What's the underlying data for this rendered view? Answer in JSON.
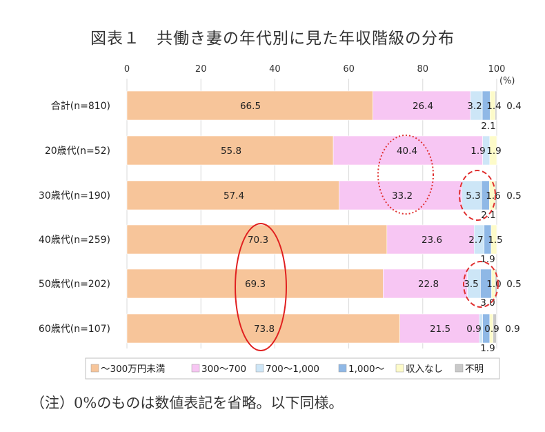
{
  "title": "図表１　共働き妻の年代別に見た年収階級の分布",
  "note": "（注）0%のものは数値表記を省略。以下同様。",
  "chart_data": {
    "type": "bar",
    "orientation": "horizontal",
    "stacked": true,
    "xlim": [
      0,
      100
    ],
    "x_ticks": [
      "0",
      "20",
      "40",
      "60",
      "80",
      "100"
    ],
    "unit_label": "(%)",
    "categories": [
      "合計(n=810)",
      "20歳代(n=52)",
      "30歳代(n=190)",
      "40歳代(n=259)",
      "50歳代(n=202)",
      "60歳代(n=107)"
    ],
    "series": [
      {
        "name": "～300万円未満",
        "color": "#f7c59a",
        "values": [
          66.5,
          55.8,
          57.4,
          70.3,
          69.3,
          73.8
        ]
      },
      {
        "name": "300～700",
        "color": "#f7c6f3",
        "values": [
          26.4,
          40.4,
          33.2,
          23.6,
          22.8,
          21.5
        ]
      },
      {
        "name": "700～1,000",
        "color": "#cde6f7",
        "values": [
          3.2,
          1.9,
          5.3,
          2.7,
          3.5,
          0.9
        ]
      },
      {
        "name": "1,000～",
        "color": "#8fb8e6",
        "values": [
          2.1,
          0,
          2.1,
          1.9,
          3.0,
          1.9
        ]
      },
      {
        "name": "収入なし",
        "color": "#fdfbc9",
        "values": [
          1.4,
          1.9,
          1.6,
          1.5,
          1.0,
          0.9
        ]
      },
      {
        "name": "不明",
        "color": "#c9c9c9",
        "values": [
          0.4,
          0,
          0.5,
          0,
          0.5,
          0.9
        ]
      }
    ],
    "data_labels": [
      {
        "text": "66.5"
      },
      {
        "text": "26.4"
      },
      {
        "text": "3.2"
      },
      {
        "text": "1.4"
      },
      {
        "text": "0.4"
      },
      {
        "text": "2.1"
      },
      {
        "text": "55.8"
      },
      {
        "text": "40.4"
      },
      {
        "text": "1.9"
      },
      {
        "text": "1.9"
      },
      {
        "text": "57.4"
      },
      {
        "text": "33.2"
      },
      {
        "text": "5.3"
      },
      {
        "text": "1.6"
      },
      {
        "text": "0.5"
      },
      {
        "text": "2.1"
      },
      {
        "text": "70.3"
      },
      {
        "text": "23.6"
      },
      {
        "text": "2.7"
      },
      {
        "text": "1.5"
      },
      {
        "text": "1.9"
      },
      {
        "text": "69.3"
      },
      {
        "text": "22.8"
      },
      {
        "text": "3.5"
      },
      {
        "text": "1.0"
      },
      {
        "text": "0.5"
      },
      {
        "text": "3.0"
      },
      {
        "text": "73.8"
      },
      {
        "text": "21.5"
      },
      {
        "text": "0.9"
      },
      {
        "text": "0.9"
      },
      {
        "text": "0.9"
      },
      {
        "text": "1.9"
      }
    ],
    "legend_position": "bottom",
    "grid": true
  }
}
